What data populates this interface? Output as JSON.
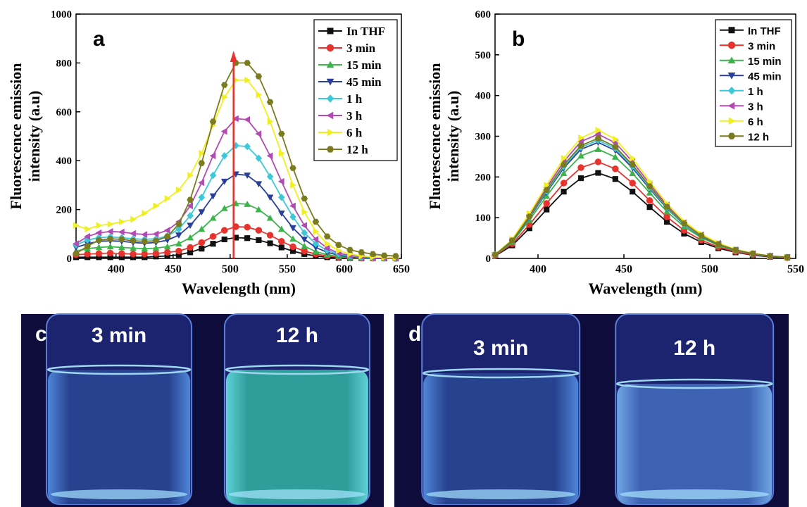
{
  "chart_data": [
    {
      "type": "line",
      "panel": "a",
      "xlabel": "Wavelength (nm)",
      "ylabel": [
        "Fluorescence emission",
        "intensity (a.u)"
      ],
      "x": [
        365,
        375,
        385,
        395,
        405,
        415,
        425,
        435,
        445,
        455,
        465,
        475,
        485,
        495,
        505,
        515,
        525,
        535,
        545,
        555,
        565,
        575,
        585,
        595,
        605,
        615,
        625,
        635,
        645
      ],
      "xlim": [
        365,
        650
      ],
      "xticks": [
        400,
        450,
        500,
        550,
        600,
        650
      ],
      "ylim": [
        0,
        1000
      ],
      "yticks": [
        0,
        200,
        400,
        600,
        800,
        1000
      ],
      "legend": "upper right",
      "arrow": {
        "x": 503,
        "from": 0,
        "to": 850,
        "color": "#e8322d"
      },
      "series": [
        {
          "name": "In THF",
          "color": "#111111",
          "marker": "square",
          "values": [
            5,
            5,
            5,
            5,
            5,
            5,
            5,
            8,
            10,
            15,
            25,
            40,
            60,
            78,
            85,
            83,
            75,
            62,
            45,
            30,
            18,
            10,
            5,
            3,
            2,
            1,
            1,
            0,
            0
          ]
        },
        {
          "name": "3 min",
          "color": "#e8322d",
          "marker": "circle",
          "values": [
            15,
            18,
            20,
            22,
            20,
            18,
            18,
            20,
            25,
            30,
            45,
            65,
            90,
            115,
            130,
            128,
            115,
            95,
            70,
            48,
            30,
            18,
            10,
            6,
            4,
            2,
            1,
            1,
            0
          ]
        },
        {
          "name": "15 min",
          "color": "#3cb44b",
          "marker": "triangle-up",
          "values": [
            30,
            40,
            45,
            48,
            45,
            42,
            40,
            42,
            48,
            60,
            85,
            120,
            165,
            205,
            225,
            222,
            200,
            165,
            120,
            80,
            50,
            28,
            15,
            8,
            5,
            3,
            2,
            1,
            1
          ]
        },
        {
          "name": "45 min",
          "color": "#2a3f9a",
          "marker": "triangle-down",
          "values": [
            45,
            60,
            70,
            72,
            70,
            65,
            62,
            65,
            75,
            95,
            135,
            190,
            255,
            315,
            345,
            340,
            305,
            250,
            185,
            125,
            78,
            45,
            25,
            13,
            7,
            4,
            2,
            1,
            1
          ]
        },
        {
          "name": "1 h",
          "color": "#3cc8d8",
          "marker": "diamond",
          "values": [
            55,
            75,
            85,
            88,
            85,
            80,
            78,
            80,
            92,
            120,
            175,
            250,
            340,
            420,
            462,
            458,
            410,
            335,
            250,
            170,
            105,
            60,
            33,
            18,
            10,
            5,
            3,
            2,
            1
          ]
        },
        {
          "name": "3 h",
          "color": "#b34ab3",
          "marker": "triangle-left",
          "values": [
            60,
            90,
            105,
            110,
            108,
            102,
            98,
            100,
            115,
            150,
            215,
            310,
            420,
            520,
            572,
            568,
            510,
            420,
            315,
            215,
            135,
            78,
            42,
            22,
            12,
            7,
            4,
            2,
            1
          ]
        },
        {
          "name": "6 h",
          "color": "#f0f020",
          "marker": "triangle-right",
          "values": [
            135,
            120,
            135,
            140,
            150,
            160,
            185,
            215,
            245,
            280,
            340,
            430,
            545,
            660,
            730,
            730,
            670,
            560,
            430,
            300,
            190,
            110,
            60,
            32,
            18,
            10,
            6,
            4,
            3
          ]
        },
        {
          "name": "12 h",
          "color": "#7a7a1e",
          "marker": "hexagon",
          "values": [
            20,
            50,
            75,
            80,
            78,
            72,
            70,
            72,
            90,
            140,
            240,
            390,
            560,
            710,
            800,
            800,
            745,
            640,
            510,
            370,
            245,
            150,
            90,
            55,
            35,
            25,
            18,
            12,
            10
          ]
        }
      ]
    },
    {
      "type": "line",
      "panel": "b",
      "xlabel": "Wavelength (nm)",
      "ylabel": [
        "Fluorescence emission",
        "intensity (a.u)"
      ],
      "x": [
        375,
        385,
        395,
        405,
        415,
        425,
        435,
        445,
        455,
        465,
        475,
        485,
        495,
        505,
        515,
        525,
        535,
        545
      ],
      "xlim": [
        375,
        550
      ],
      "xticks": [
        400,
        450,
        500,
        550
      ],
      "ylim": [
        0,
        600
      ],
      "yticks": [
        0,
        100,
        200,
        300,
        400,
        500,
        600
      ],
      "legend": "upper right",
      "series": [
        {
          "name": "In THF",
          "color": "#111111",
          "marker": "square",
          "values": [
            6,
            32,
            74,
            120,
            164,
            197,
            210,
            195,
            164,
            126,
            90,
            61,
            40,
            25,
            15,
            8,
            4,
            2
          ]
        },
        {
          "name": "3 min",
          "color": "#e8322d",
          "marker": "circle",
          "values": [
            7,
            36,
            83,
            135,
            185,
            223,
            237,
            220,
            185,
            142,
            102,
            69,
            45,
            28,
            17,
            9,
            5,
            2
          ]
        },
        {
          "name": "15 min",
          "color": "#3cb44b",
          "marker": "triangle-up",
          "values": [
            8,
            40,
            94,
            153,
            209,
            252,
            268,
            249,
            209,
            161,
            115,
            78,
            51,
            32,
            19,
            11,
            5,
            3
          ]
        },
        {
          "name": "45 min",
          "color": "#2a3f9a",
          "marker": "triangle-down",
          "values": [
            9,
            43,
            100,
            162,
            222,
            268,
            285,
            265,
            222,
            171,
            123,
            83,
            54,
            34,
            20,
            11,
            6,
            3
          ]
        },
        {
          "name": "1 h",
          "color": "#3cc8d8",
          "marker": "diamond",
          "values": [
            9,
            44,
            102,
            165,
            226,
            273,
            290,
            270,
            226,
            174,
            125,
            84,
            55,
            35,
            20,
            12,
            6,
            3
          ]
        },
        {
          "name": "3 h",
          "color": "#b34ab3",
          "marker": "triangle-left",
          "values": [
            9,
            46,
            107,
            174,
            238,
            287,
            305,
            284,
            238,
            183,
            131,
            88,
            58,
            37,
            21,
            12,
            6,
            3
          ]
        },
        {
          "name": "6 h",
          "color": "#f0f020",
          "marker": "triangle-right",
          "values": [
            9,
            47,
            110,
            180,
            246,
            296,
            315,
            293,
            246,
            189,
            135,
            91,
            60,
            38,
            22,
            13,
            6,
            3
          ]
        },
        {
          "name": "12 h",
          "color": "#7a7a1e",
          "marker": "hexagon",
          "values": [
            9,
            44,
            103,
            168,
            230,
            277,
            295,
            274,
            230,
            177,
            127,
            86,
            56,
            35,
            21,
            12,
            6,
            3
          ]
        }
      ]
    }
  ],
  "photos": [
    {
      "label": "c",
      "captions": [
        "3 min",
        "12 h"
      ]
    },
    {
      "label": "d",
      "captions": [
        "3 min",
        "12 h"
      ]
    }
  ]
}
